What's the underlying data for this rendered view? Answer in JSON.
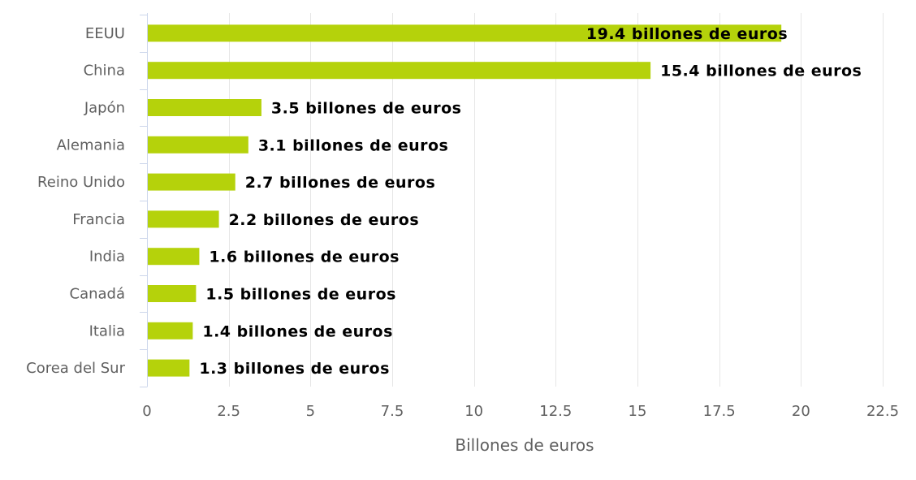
{
  "chart_data": {
    "type": "bar",
    "orientation": "horizontal",
    "categories": [
      "EEUU",
      "China",
      "Japón",
      "Alemania",
      "Reino Unido",
      "Francia",
      "India",
      "Canadá",
      "Italia",
      "Corea del Sur"
    ],
    "values": [
      19.4,
      15.4,
      3.5,
      3.1,
      2.7,
      2.2,
      1.6,
      1.5,
      1.4,
      1.3
    ],
    "data_labels": [
      "19.4 billones de euros",
      "15.4 billones de euros",
      "3.5 billones de euros",
      "3.1 billones de euros",
      "2.7 billones de euros",
      "2.2 billones de euros",
      "1.6 billones de euros",
      "1.5 billones de euros",
      "1.4 billones de euros",
      "1.3 billones de euros"
    ],
    "xlabel": "Billones de euros",
    "ylabel": "",
    "title": "",
    "xlim": [
      0,
      22.5
    ],
    "xticks": [
      0,
      2.5,
      5,
      7.5,
      10,
      12.5,
      15,
      17.5,
      20,
      22.5
    ],
    "xtick_labels": [
      "0",
      "2.5",
      "5",
      "7.5",
      "10",
      "12.5",
      "15",
      "17.5",
      "20",
      "22.5"
    ],
    "grid": true,
    "bar_color": "#b5d20b"
  }
}
